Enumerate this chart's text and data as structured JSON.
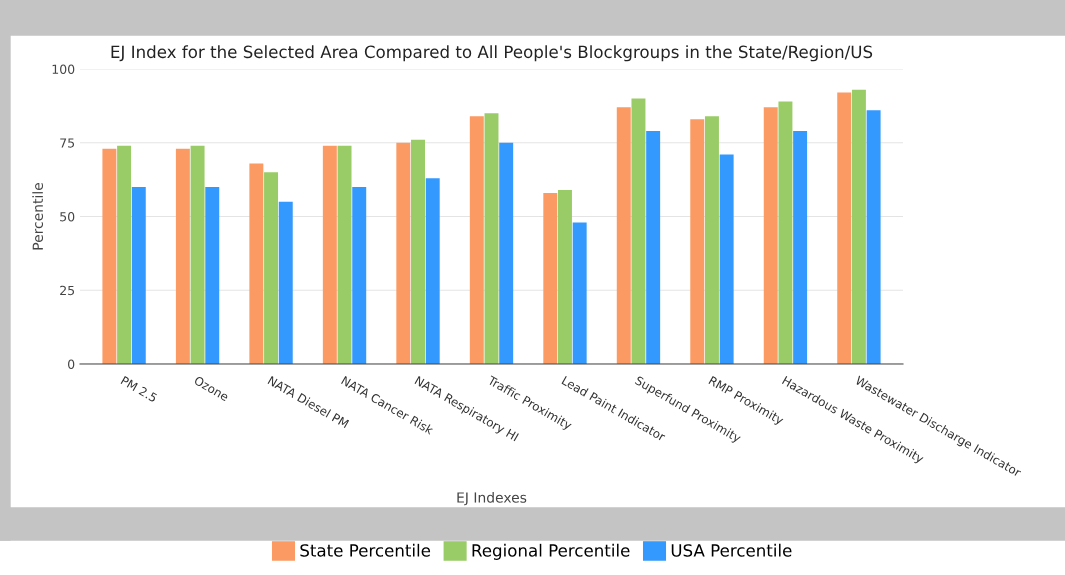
{
  "chart_data": {
    "type": "bar",
    "title": "EJ Index for the Selected Area Compared to All People's Blockgroups in the State/Region/US",
    "xlabel": "EJ Indexes",
    "ylabel": "Percentile",
    "categories": [
      "PM 2.5",
      "Ozone",
      "NATA Diesel PM",
      "NATA Cancer Risk",
      "NATA Respiratory HI",
      "Traffic Proximity",
      "Lead Paint Indicator",
      "Superfund Proximity",
      "RMP Proximity",
      "Hazardous Waste Proximity",
      "Wastewater Discharge Indicator"
    ],
    "series": [
      {
        "name": "State Percentile",
        "color": "#fc9a63",
        "values": [
          73,
          73,
          68,
          74,
          75,
          84,
          58,
          87,
          83,
          87,
          92
        ]
      },
      {
        "name": "Regional Percentile",
        "color": "#99cc66",
        "values": [
          74,
          74,
          65,
          74,
          76,
          85,
          59,
          90,
          84,
          89,
          93
        ]
      },
      {
        "name": "USA Percentile",
        "color": "#3399ff",
        "values": [
          60,
          60,
          55,
          60,
          63,
          75,
          48,
          79,
          71,
          79,
          86
        ]
      }
    ],
    "ylim": [
      0,
      100
    ],
    "yticks": [
      0,
      25,
      50,
      75,
      100
    ],
    "grid": "y",
    "legend": "bottom"
  }
}
